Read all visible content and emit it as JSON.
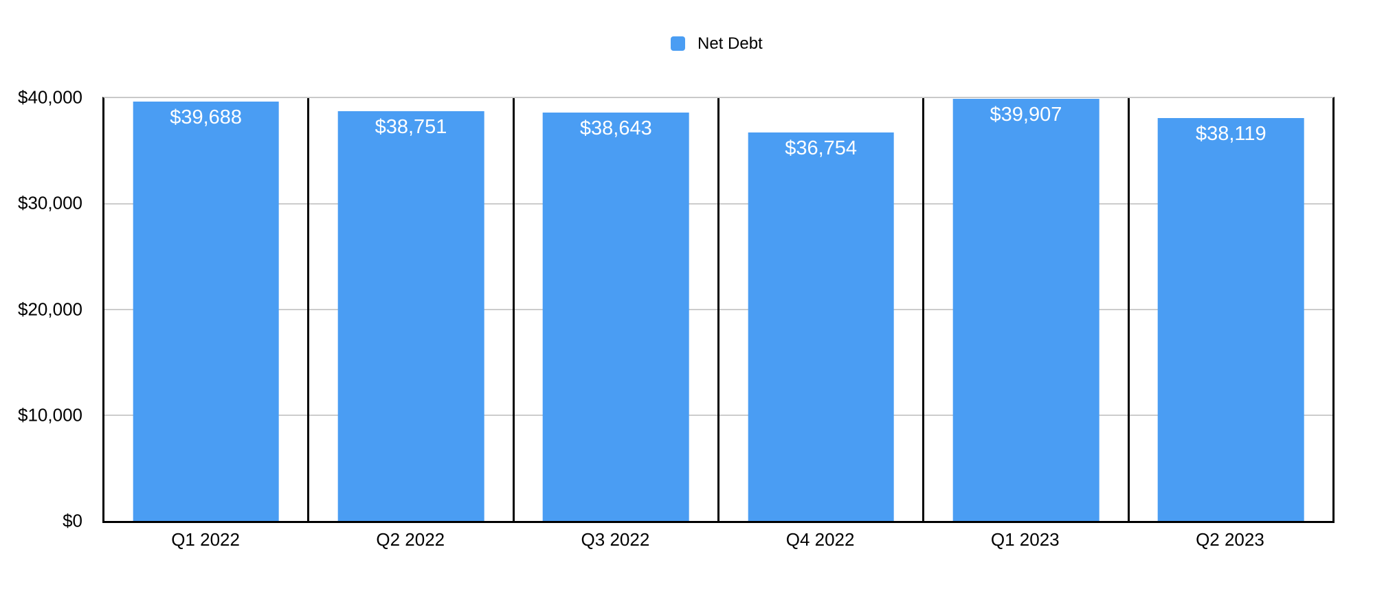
{
  "chart_data": {
    "type": "bar",
    "title": "",
    "categories": [
      "Q1 2022",
      "Q2 2022",
      "Q3 2022",
      "Q4 2022",
      "Q1 2023",
      "Q2 2023"
    ],
    "series": [
      {
        "name": "Net Debt",
        "values": [
          39688,
          38751,
          38643,
          36754,
          39907,
          38119
        ],
        "value_labels": [
          "$39,688",
          "$38,751",
          "$38,643",
          "$36,754",
          "$39,907",
          "$38,119"
        ]
      }
    ],
    "xlabel": "",
    "ylabel": "",
    "ylim": [
      0,
      40000
    ],
    "yticks": [
      {
        "value": 0,
        "label": "$0"
      },
      {
        "value": 10000,
        "label": "$10,000"
      },
      {
        "value": 20000,
        "label": "$20,000"
      },
      {
        "value": 30000,
        "label": "$30,000"
      },
      {
        "value": 40000,
        "label": "$40,000"
      }
    ],
    "grid": true,
    "legend_position": "top-center",
    "colors": {
      "bar": "#4a9df3",
      "grid": "#cccccc",
      "axis": "#000000",
      "value_label": "#ffffff",
      "tick_label": "#000000",
      "background": "#ffffff"
    }
  }
}
